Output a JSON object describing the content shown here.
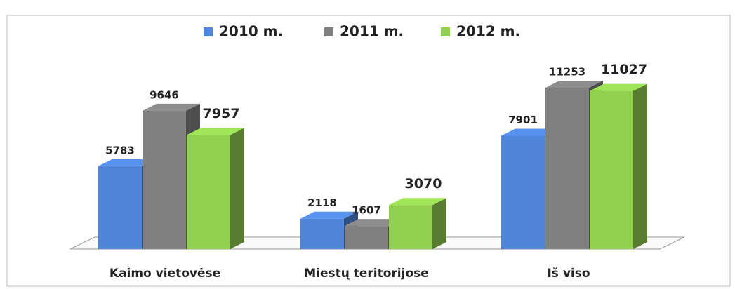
{
  "chart_data": {
    "type": "bar3d",
    "categories": [
      "Kaimo vietovėse",
      "Miestų teritorijose",
      "Iš viso"
    ],
    "series": [
      {
        "name": "2010 m.",
        "color": "#4f86d9",
        "values": [
          5783,
          2118,
          7901
        ]
      },
      {
        "name": "2011 m.",
        "color": "#808080",
        "values": [
          9646,
          1607,
          11253
        ]
      },
      {
        "name": "2012 m.",
        "color": "#92d050",
        "values": [
          7957,
          3070,
          11027
        ]
      }
    ]
  }
}
